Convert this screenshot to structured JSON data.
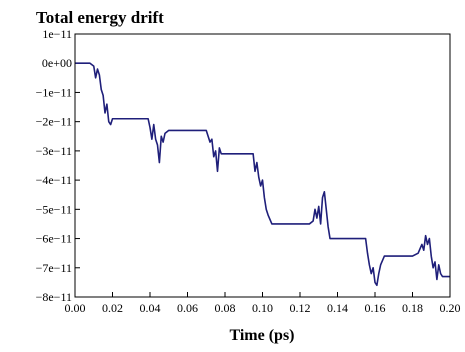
{
  "chart_data": {
    "type": "line",
    "title": "Total energy drift",
    "xlabel": "Time (ps)",
    "ylabel": "",
    "xlim": [
      0,
      0.2
    ],
    "ylim": [
      -8e-11,
      1e-11
    ],
    "grid": false,
    "x_ticks": [
      {
        "value": 0.0,
        "label": "0.00"
      },
      {
        "value": 0.02,
        "label": "0.02"
      },
      {
        "value": 0.04,
        "label": "0.04"
      },
      {
        "value": 0.06,
        "label": "0.06"
      },
      {
        "value": 0.08,
        "label": "0.08"
      },
      {
        "value": 0.1,
        "label": "0.10"
      },
      {
        "value": 0.12,
        "label": "0.12"
      },
      {
        "value": 0.14,
        "label": "0.14"
      },
      {
        "value": 0.16,
        "label": "0.16"
      },
      {
        "value": 0.18,
        "label": "0.18"
      },
      {
        "value": 0.2,
        "label": "0.20"
      }
    ],
    "y_ticks": [
      {
        "value": 1e-11,
        "label": "1e−11"
      },
      {
        "value": 0,
        "label": "0e+00"
      },
      {
        "value": -1e-11,
        "label": "−1e−11"
      },
      {
        "value": -2e-11,
        "label": "−2e−11"
      },
      {
        "value": -3e-11,
        "label": "−3e−11"
      },
      {
        "value": -4e-11,
        "label": "−4e−11"
      },
      {
        "value": -5e-11,
        "label": "−5e−11"
      },
      {
        "value": -6e-11,
        "label": "−6e−11"
      },
      {
        "value": -7e-11,
        "label": "−7e−11"
      },
      {
        "value": -8e-11,
        "label": "−8e−11"
      }
    ],
    "series": [
      {
        "color": "#1f1f7a",
        "x": [
          0.0,
          0.008,
          0.01,
          0.011,
          0.012,
          0.013,
          0.014,
          0.015,
          0.016,
          0.017,
          0.018,
          0.019,
          0.02,
          0.025,
          0.03,
          0.035,
          0.039,
          0.04,
          0.041,
          0.042,
          0.043,
          0.044,
          0.045,
          0.046,
          0.047,
          0.048,
          0.05,
          0.055,
          0.06,
          0.065,
          0.07,
          0.071,
          0.072,
          0.073,
          0.074,
          0.075,
          0.076,
          0.077,
          0.078,
          0.08,
          0.085,
          0.09,
          0.095,
          0.096,
          0.097,
          0.098,
          0.099,
          0.1,
          0.101,
          0.102,
          0.103,
          0.105,
          0.11,
          0.115,
          0.12,
          0.125,
          0.127,
          0.128,
          0.129,
          0.13,
          0.131,
          0.132,
          0.133,
          0.134,
          0.135,
          0.136,
          0.14,
          0.145,
          0.15,
          0.155,
          0.156,
          0.157,
          0.158,
          0.159,
          0.16,
          0.161,
          0.162,
          0.163,
          0.165,
          0.17,
          0.175,
          0.18,
          0.183,
          0.185,
          0.186,
          0.187,
          0.188,
          0.189,
          0.19,
          0.191,
          0.192,
          0.193,
          0.194,
          0.195,
          0.196,
          0.197,
          0.2
        ],
        "y": [
          0.0,
          0.0,
          -1e-12,
          -5e-12,
          -2e-12,
          -4e-12,
          -9e-12,
          -1.1e-11,
          -1.7e-11,
          -1.4e-11,
          -2e-11,
          -2.1e-11,
          -1.9e-11,
          -1.9e-11,
          -1.9e-11,
          -1.9e-11,
          -1.9e-11,
          -2.2e-11,
          -2.6e-11,
          -2.1e-11,
          -2.6e-11,
          -2.8e-11,
          -3.4e-11,
          -2.5e-11,
          -2.7e-11,
          -2.4e-11,
          -2.3e-11,
          -2.3e-11,
          -2.3e-11,
          -2.3e-11,
          -2.3e-11,
          -2.5e-11,
          -2.7e-11,
          -2.6e-11,
          -3.2e-11,
          -3e-11,
          -3.7e-11,
          -2.9e-11,
          -3.1e-11,
          -3.1e-11,
          -3.1e-11,
          -3.1e-11,
          -3.1e-11,
          -3.7e-11,
          -3.4e-11,
          -3.9e-11,
          -4.2e-11,
          -4e-11,
          -4.6e-11,
          -5e-11,
          -5.2e-11,
          -5.5e-11,
          -5.5e-11,
          -5.5e-11,
          -5.5e-11,
          -5.5e-11,
          -5.4e-11,
          -5e-11,
          -5.3e-11,
          -4.9e-11,
          -5.5e-11,
          -4.6e-11,
          -4.4e-11,
          -5e-11,
          -5.6e-11,
          -6e-11,
          -6e-11,
          -6e-11,
          -6e-11,
          -6e-11,
          -6.5e-11,
          -6.9e-11,
          -7.2e-11,
          -7e-11,
          -7.5e-11,
          -7.6e-11,
          -7.2e-11,
          -6.9e-11,
          -6.6e-11,
          -6.6e-11,
          -6.6e-11,
          -6.6e-11,
          -6.5e-11,
          -6.2e-11,
          -6.4e-11,
          -5.9e-11,
          -6.2e-11,
          -6e-11,
          -6.6e-11,
          -7e-11,
          -6.8e-11,
          -7.4e-11,
          -6.9e-11,
          -7.2e-11,
          -7.3e-11,
          -7.3e-11,
          -7.3e-11
        ]
      }
    ]
  }
}
